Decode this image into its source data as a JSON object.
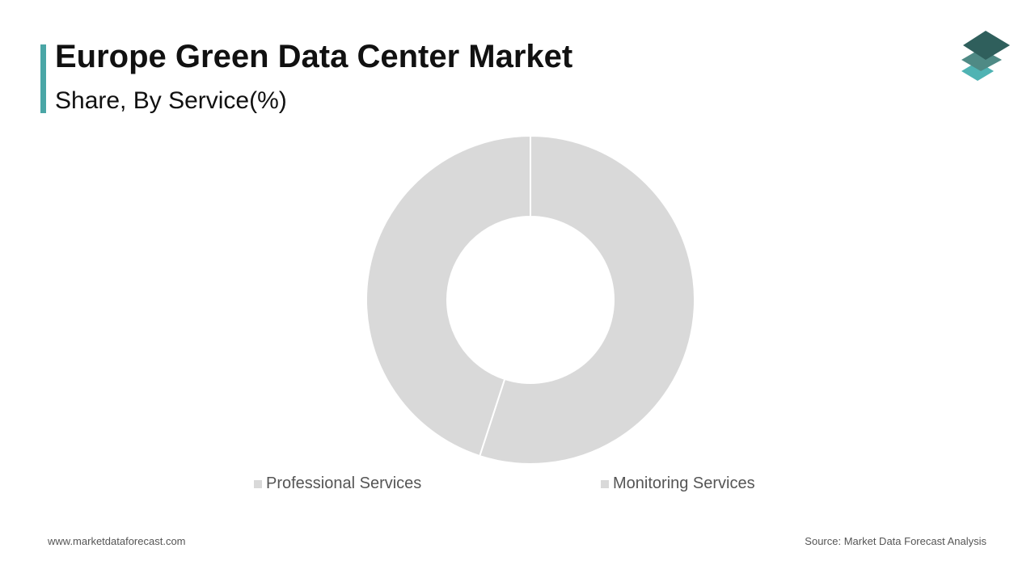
{
  "header": {
    "title": "Europe Green Data Center Market",
    "subtitle": "Share, By Service(%)"
  },
  "footer": {
    "website": "www.marketdataforecast.com",
    "source": "Source: Market Data Forecast Analysis"
  },
  "colors": {
    "accent": "#4aa6a6",
    "slice_fill": "#d9d9d9",
    "slice_border": "#ffffff",
    "logo_top": "#2f5f5c",
    "logo_mid": "#4f8a85",
    "logo_bottom": "#4fb3b3"
  },
  "icons": {
    "logo": "stacked-layers-icon"
  },
  "chart_data": {
    "type": "pie",
    "donut": true,
    "categories": [
      "Professional Services",
      "Monitoring Services"
    ],
    "values": [
      55,
      45
    ],
    "unit": "%",
    "legend": "bottom",
    "title": "Europe Green Data Center Market",
    "subtitle": "Share, By Service(%)"
  }
}
